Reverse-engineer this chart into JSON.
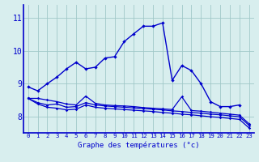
{
  "hours": [
    0,
    1,
    2,
    3,
    4,
    5,
    6,
    7,
    8,
    9,
    10,
    11,
    12,
    13,
    14,
    15,
    16,
    17,
    18,
    19,
    20,
    21,
    22,
    23
  ],
  "temp": [
    8.9,
    8.78,
    9.0,
    9.2,
    9.45,
    9.65,
    9.45,
    9.5,
    9.78,
    9.82,
    10.28,
    10.52,
    10.75,
    10.75,
    10.85,
    9.1,
    9.55,
    9.4,
    9.0,
    8.45,
    8.3,
    8.3,
    8.35,
    null
  ],
  "line1": [
    8.55,
    8.55,
    8.5,
    8.45,
    8.38,
    8.35,
    8.62,
    8.4,
    8.35,
    8.33,
    8.32,
    8.3,
    8.27,
    8.25,
    8.23,
    8.21,
    8.6,
    8.18,
    8.16,
    8.13,
    8.1,
    8.07,
    8.04,
    7.78
  ],
  "line2": [
    8.55,
    8.42,
    8.35,
    8.38,
    8.28,
    8.3,
    8.42,
    8.35,
    8.32,
    8.3,
    8.28,
    8.26,
    8.24,
    8.22,
    8.2,
    8.17,
    8.15,
    8.12,
    8.1,
    8.07,
    8.05,
    8.02,
    7.99,
    7.73
  ],
  "line3": [
    8.55,
    8.38,
    8.28,
    8.25,
    8.2,
    8.22,
    8.35,
    8.28,
    8.25,
    8.23,
    8.21,
    8.19,
    8.17,
    8.15,
    8.12,
    8.1,
    8.07,
    8.05,
    8.02,
    7.99,
    7.97,
    7.94,
    7.91,
    7.65
  ],
  "line_color": "#0000cc",
  "bg_color": "#d8eeee",
  "grid_color": "#a0c8c8",
  "ylabel_values": [
    8,
    9,
    10,
    11
  ],
  "xlabel": "Graphe des températures (°c)",
  "xlim": [
    -0.5,
    23.5
  ],
  "ylim": [
    7.5,
    11.4
  ]
}
